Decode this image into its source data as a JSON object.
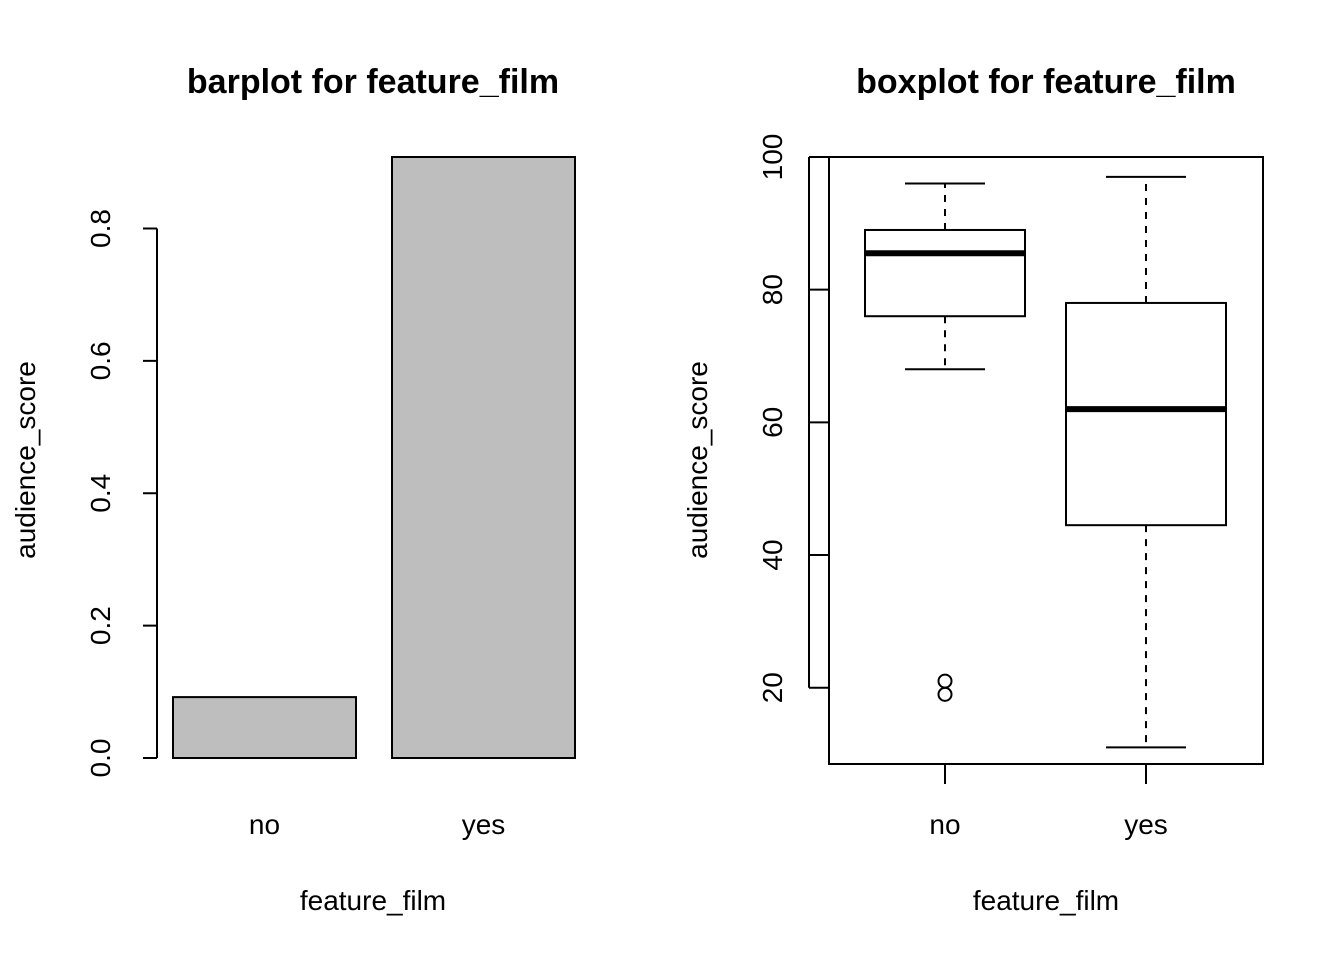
{
  "chart_data": [
    {
      "type": "bar",
      "title": "barplot for feature_film",
      "xlabel": "feature_film",
      "ylabel": "audience_score",
      "categories": [
        "no",
        "yes"
      ],
      "values": [
        0.092,
        0.908
      ],
      "ylim": [
        0,
        0.908
      ],
      "yticks": [
        0.0,
        0.2,
        0.4,
        0.6,
        0.8
      ],
      "ytick_labels": [
        "0.0",
        "0.2",
        "0.4",
        "0.6",
        "0.8"
      ],
      "bar_color": "#bebebe",
      "grid": false
    },
    {
      "type": "box",
      "title": "boxplot for feature_film",
      "xlabel": "feature_film",
      "ylabel": "audience_score",
      "categories": [
        "no",
        "yes"
      ],
      "boxes": [
        {
          "name": "no",
          "whisker_low": 68,
          "q1": 76,
          "median": 85.5,
          "q3": 89,
          "whisker_high": 96,
          "outliers": [
            19,
            21
          ]
        },
        {
          "name": "yes",
          "whisker_low": 11,
          "q1": 44.5,
          "median": 62,
          "q3": 78,
          "whisker_high": 97,
          "outliers": []
        }
      ],
      "ylim": [
        8.5,
        100
      ],
      "yticks": [
        20,
        40,
        60,
        80,
        100
      ],
      "ytick_labels": [
        "20",
        "40",
        "60",
        "80",
        "100"
      ],
      "grid": false
    }
  ]
}
